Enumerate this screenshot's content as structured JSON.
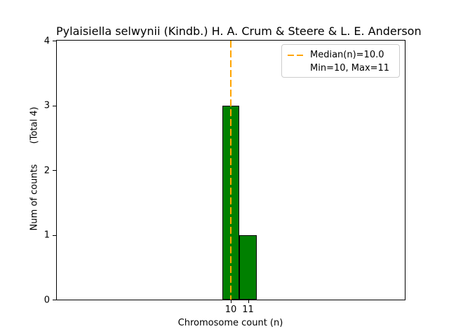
{
  "chart_data": {
    "type": "bar",
    "title": "Pylaisiella selwynii (Kindb.) H. A. Crum & Steere & L. E. Anderson",
    "xlabel": "Chromosome count (n)",
    "ylabel": "Num of counts",
    "ylabel_annotation": "(Total 4)",
    "categories": [
      10,
      11
    ],
    "values": [
      3,
      1
    ],
    "bar_width": 1,
    "xticks": [
      "10",
      "11"
    ],
    "yticks": [
      "0",
      "1",
      "2",
      "3",
      "4"
    ],
    "xlim": [
      -0.12,
      20.12
    ],
    "ylim": [
      0,
      4
    ],
    "grid": false,
    "bar_color": "#008000",
    "bar_edge_color": "#000000",
    "median_line": {
      "x": 10.0,
      "color": "#FFA500",
      "style": "dashed"
    },
    "legend": {
      "position": "upper right",
      "entries": [
        {
          "label": "Median(n)=10.0",
          "swatch": "orange-dashed-line"
        },
        {
          "label": "Min=10, Max=11",
          "swatch": "none"
        }
      ]
    },
    "stats": {
      "median": 10.0,
      "min": 10,
      "max": 11,
      "total": 4
    }
  }
}
